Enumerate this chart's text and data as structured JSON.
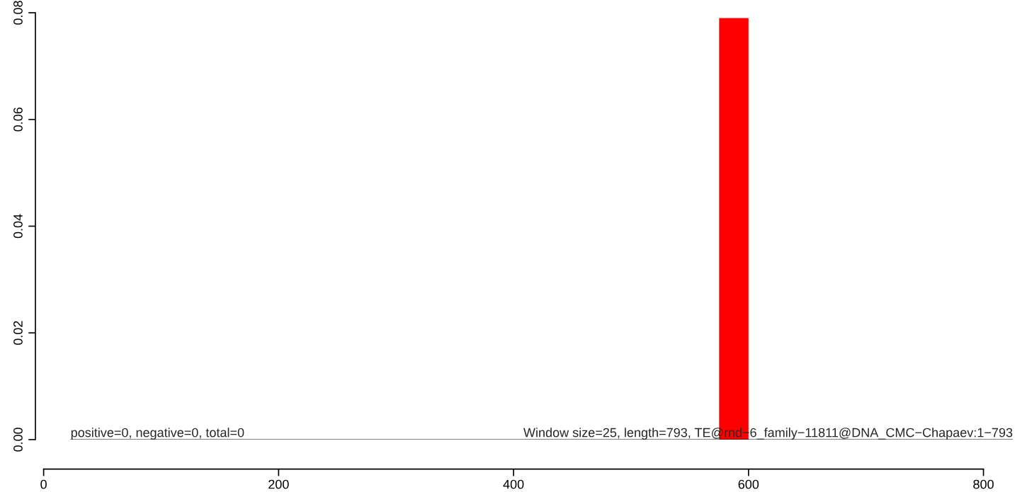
{
  "chart_data": {
    "type": "histogram",
    "bins": [
      575,
      600
    ],
    "values": [
      0.079
    ],
    "color": "#ff0000",
    "xlim": [
      -7,
      825
    ],
    "ylim": [
      0,
      0.08
    ],
    "xticks": [
      0,
      200,
      400,
      600,
      800
    ],
    "yticks": [
      {
        "value": 0,
        "label": "0.00"
      },
      {
        "value": 0.02,
        "label": "0.02"
      },
      {
        "value": 0.04,
        "label": "0.04"
      },
      {
        "value": 0.06,
        "label": "0.06"
      },
      {
        "value": 0.08,
        "label": "0.08"
      }
    ],
    "ref_lines": [
      {
        "axis": "y",
        "value": 0,
        "color": "#000000"
      }
    ],
    "annotations": [
      "positive=0, negative=0, total=0",
      "Window size=25, length=793, TE@rnd−6_family−11811@DNA_CMC−Chapaev:1−793"
    ],
    "grid": false
  }
}
